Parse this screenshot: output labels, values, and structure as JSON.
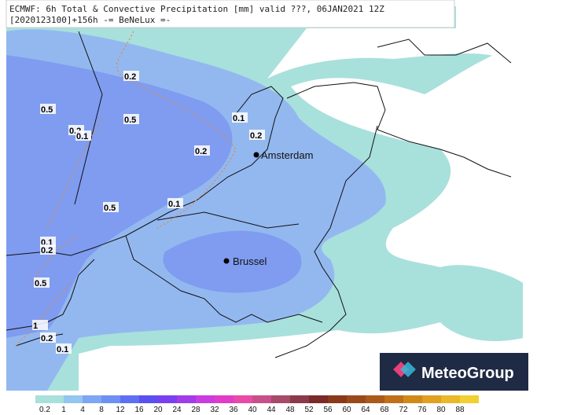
{
  "header": {
    "line1": "ECMWF: 6h Total & Convective Precipitation [mm] valid ???, 06JAN2021 12Z",
    "line2": "[2020123100]+156h -= BeNeLux =-"
  },
  "cities": [
    "Amsterdam",
    "Brussel"
  ],
  "contour_labels": [
    "0.2",
    "0.5",
    "0.5",
    "0.2",
    "0.1",
    "0.1",
    "0.2",
    "0.2",
    "0.5",
    "0.1",
    "0.1",
    "0.2",
    "0.5",
    "1",
    "0.2",
    "0.1"
  ],
  "logo": "MeteoGroup",
  "colorbar": {
    "ticks": [
      0.2,
      1,
      4,
      8,
      12,
      16,
      20,
      24,
      28,
      32,
      36,
      40,
      44,
      48,
      52,
      56,
      60,
      64,
      68,
      72,
      76,
      80,
      88
    ],
    "colors": [
      "#a8e0dc",
      "#93c6f0",
      "#7fa6f2",
      "#6f8ff2",
      "#5f6ff4",
      "#5a4ff0",
      "#7a3ff0",
      "#a03ce8",
      "#c83ce0",
      "#e03cc8",
      "#e84aa8",
      "#c8508a",
      "#a84a6a",
      "#8a3a4a",
      "#7a2a2a",
      "#8a3a1a",
      "#9a4a1a",
      "#aa5a1a",
      "#c0701a",
      "#d08a1a",
      "#e0a020",
      "#eab828",
      "#f2d030"
    ]
  }
}
